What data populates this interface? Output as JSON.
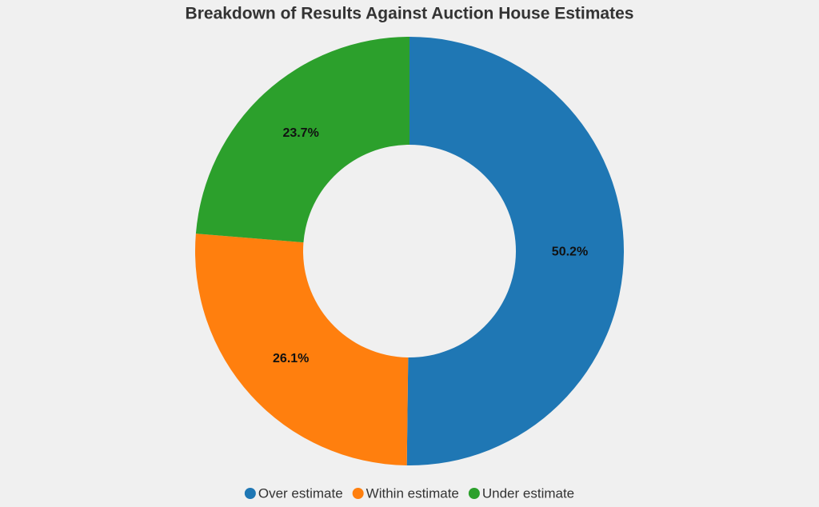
{
  "chart_data": {
    "type": "donut",
    "title": "Breakdown of Results Against Auction House Estimates",
    "categories": [
      "Over estimate",
      "Within estimate",
      "Under estimate"
    ],
    "values": [
      50.2,
      26.1,
      23.7
    ],
    "value_labels": [
      "50.2%",
      "26.1%",
      "23.7%"
    ],
    "colors": [
      "#1f77b4",
      "#ff7f0e",
      "#2ca02c"
    ],
    "legend": "bottom"
  }
}
